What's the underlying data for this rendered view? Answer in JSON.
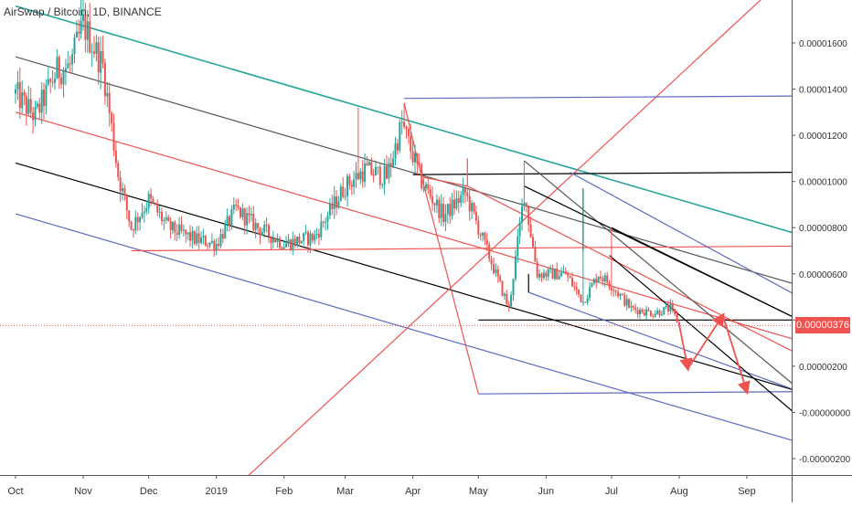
{
  "colors": {
    "up": "#26a69a",
    "down": "#ef5350",
    "channel_teal": "#26a69a",
    "channel_black": "#000000",
    "channel_gray": "#555555",
    "channel_red": "#ef5350",
    "channel_blue": "#5c6bc0",
    "last_price": "#ef5350"
  },
  "chart_data": {
    "type": "candlestick",
    "title": "AirSwap / Bitcoin, 1D, BINANCE",
    "symbol": "AirSwap / Bitcoin",
    "interval": "1D",
    "exchange": "BINANCE",
    "x_ticks": [
      "Oct",
      "Nov",
      "Dec",
      "2019",
      "Feb",
      "Mar",
      "Apr",
      "May",
      "Jun",
      "Jul",
      "Aug",
      "Sep"
    ],
    "y_ticks": [
      "0.00001600",
      "0.00001400",
      "0.00001200",
      "0.00001000",
      "0.00000800",
      "0.00000600",
      "0.00000400",
      "0.00000200",
      "-0.00000000",
      "-0.00000200"
    ],
    "ylim": [
      -2.5e-06,
      1.79e-05
    ],
    "last_price": 3.76e-06,
    "last_price_label": "0.00000376",
    "grid": false,
    "series": [
      {
        "type": "candlestick",
        "anchors": [
          [
            "2018-10-01",
            1.38e-05
          ],
          [
            "2018-10-10",
            1.28e-05
          ],
          [
            "2018-10-20",
            1.48e-05
          ],
          [
            "2018-10-26",
            1.5e-05
          ],
          [
            "2018-11-01",
            1.68e-05
          ],
          [
            "2018-11-10",
            1.5e-05
          ],
          [
            "2018-11-17",
            1.03e-05
          ],
          [
            "2018-11-23",
            8e-06
          ],
          [
            "2018-12-01",
            9.2e-06
          ],
          [
            "2018-12-10",
            8e-06
          ],
          [
            "2018-12-22",
            7.5e-06
          ],
          [
            "2019-01-01",
            7.3e-06
          ],
          [
            "2019-01-10",
            8.8e-06
          ],
          [
            "2019-01-20",
            8e-06
          ],
          [
            "2019-02-01",
            7.3e-06
          ],
          [
            "2019-02-15",
            7.6e-06
          ],
          [
            "2019-03-01",
            9.8e-06
          ],
          [
            "2019-03-10",
            1.05e-05
          ],
          [
            "2019-03-20",
            1.02e-05
          ],
          [
            "2019-03-27",
            1.25e-05
          ],
          [
            "2019-04-05",
            1e-05
          ],
          [
            "2019-04-15",
            8.5e-06
          ],
          [
            "2019-04-25",
            9.5e-06
          ],
          [
            "2019-05-05",
            7e-06
          ],
          [
            "2019-05-15",
            4.5e-06
          ],
          [
            "2019-05-22",
            9.5e-06
          ],
          [
            "2019-05-28",
            6e-06
          ],
          [
            "2019-06-10",
            6e-06
          ],
          [
            "2019-06-18",
            4.8e-06
          ],
          [
            "2019-06-25",
            6e-06
          ],
          [
            "2019-07-01",
            5.5e-06
          ],
          [
            "2019-07-10",
            4.5e-06
          ],
          [
            "2019-07-20",
            4.3e-06
          ],
          [
            "2019-07-28",
            4.5e-06
          ],
          [
            "2019-08-01",
            3.8e-06
          ]
        ]
      }
    ],
    "spikes": [
      {
        "date": "2018-10-31",
        "high": 1.79e-05
      },
      {
        "date": "2019-03-07",
        "high": 1.32e-05
      },
      {
        "date": "2019-03-28",
        "high": 1.34e-05
      },
      {
        "date": "2019-05-22",
        "high": 1.09e-05
      },
      {
        "date": "2019-06-18",
        "high": 9.7e-06
      },
      {
        "date": "2019-07-01",
        "high": 8e-06
      }
    ],
    "drawings": [
      {
        "kind": "line",
        "role": "channel_teal",
        "from": [
          "2018-10-01",
          1.76e-05
        ],
        "to": [
          "2019-09-25",
          7.7e-06
        ]
      },
      {
        "kind": "line",
        "role": "channel_gray",
        "from": [
          "2018-10-01",
          1.54e-05
        ],
        "to": [
          "2019-09-25",
          5.5e-06
        ]
      },
      {
        "kind": "line",
        "role": "channel_red",
        "from": [
          "2018-10-01",
          1.3e-05
        ],
        "to": [
          "2019-09-25",
          3.1e-06
        ]
      },
      {
        "kind": "line",
        "role": "channel_black",
        "from": [
          "2018-10-01",
          1.08e-05
        ],
        "to": [
          "2019-09-25",
          9e-07
        ]
      },
      {
        "kind": "line",
        "role": "channel_blue",
        "from": [
          "2018-10-01",
          8.6e-06
        ],
        "to": [
          "2019-09-25",
          -1.3e-06
        ]
      },
      {
        "kind": "line",
        "role": "channel_black",
        "from": [
          "2018-10-01",
          1.82e-05
        ],
        "to": [
          "2018-10-07",
          1.79e-05
        ]
      },
      {
        "kind": "line",
        "role": "channel_red",
        "from": [
          "2018-11-23",
          7e-06
        ],
        "to": [
          "2019-09-25",
          7.2e-06
        ]
      },
      {
        "kind": "line",
        "role": "channel_red",
        "from": [
          "2019-01-15",
          -2.8e-06
        ],
        "to": [
          "2019-09-10",
          1.81e-05
        ]
      },
      {
        "kind": "line",
        "role": "channel_blue",
        "from": [
          "2019-03-28",
          1.36e-05
        ],
        "to": [
          "2019-09-25",
          1.37e-05
        ]
      },
      {
        "kind": "line",
        "role": "channel_black",
        "from": [
          "2019-04-01",
          1.03e-05
        ],
        "to": [
          "2019-09-25",
          1.04e-05
        ]
      },
      {
        "kind": "line",
        "role": "channel_black",
        "from": [
          "2019-05-01",
          4e-06
        ],
        "to": [
          "2019-09-25",
          4e-06
        ]
      },
      {
        "kind": "line",
        "role": "channel_blue",
        "from": [
          "2019-05-01",
          8e-07
        ],
        "to": [
          "2019-09-25",
          9e-07
        ]
      },
      {
        "kind": "line",
        "role": "channel_red",
        "from": [
          "2019-03-28",
          1.34e-05
        ],
        "to": [
          "2019-04-05",
          1.02e-05
        ]
      },
      {
        "kind": "line",
        "role": "channel_red",
        "from": [
          "2019-04-05",
          1.02e-05
        ],
        "to": [
          "2019-05-01",
          8e-07
        ]
      },
      {
        "kind": "line",
        "role": "channel_red",
        "from": [
          "2019-04-05",
          1.02e-05
        ],
        "to": [
          "2019-04-26",
          9.8e-06
        ]
      },
      {
        "kind": "line",
        "role": "channel_red",
        "from": [
          "2019-04-26",
          1.1e-05
        ],
        "to": [
          "2019-04-26",
          9.8e-06
        ]
      },
      {
        "kind": "line",
        "role": "channel_red",
        "from": [
          "2019-04-26",
          9.8e-06
        ],
        "to": [
          "2019-09-25",
          2.5e-06
        ]
      },
      {
        "kind": "line",
        "role": "channel_gray",
        "from": [
          "2019-05-22",
          1.09e-05
        ],
        "to": [
          "2019-09-25",
          1e-06
        ]
      },
      {
        "kind": "line",
        "role": "channel_black",
        "from": [
          "2019-05-22",
          9.8e-06
        ],
        "to": [
          "2019-09-25",
          4e-06
        ]
      },
      {
        "kind": "line",
        "role": "channel_blue",
        "from": [
          "2019-06-12",
          1.04e-05
        ],
        "to": [
          "2019-09-25",
          5e-06
        ]
      },
      {
        "kind": "line",
        "role": "channel_blue",
        "from": [
          "2019-05-24",
          5.2e-06
        ],
        "to": [
          "2019-09-25",
          9e-07
        ]
      },
      {
        "kind": "line",
        "role": "channel_black",
        "from": [
          "2019-05-24",
          6e-06
        ],
        "to": [
          "2019-05-24",
          5.2e-06
        ]
      },
      {
        "kind": "line",
        "role": "channel_black",
        "from": [
          "2019-06-30",
          6.8e-06
        ],
        "to": [
          "2019-09-25",
          -2e-07
        ]
      },
      {
        "kind": "line",
        "role": "channel_black",
        "from": [
          "2019-06-18",
          9.7e-06
        ],
        "to": [
          "2019-06-18",
          7e-06
        ]
      },
      {
        "kind": "line",
        "role": "channel_black",
        "from": [
          "2019-07-01",
          8e-06
        ],
        "to": [
          "2019-09-25",
          4e-06
        ]
      },
      {
        "kind": "arrow",
        "role": "last_price",
        "from": [
          "2019-08-01",
          3.8e-06
        ],
        "to": [
          "2019-08-05",
          1.9e-06
        ]
      },
      {
        "kind": "arrow",
        "role": "last_price",
        "from": [
          "2019-08-05",
          1.9e-06
        ],
        "to": [
          "2019-08-21",
          4.2e-06
        ]
      },
      {
        "kind": "arrow",
        "role": "last_price",
        "from": [
          "2019-08-21",
          4.2e-06
        ],
        "to": [
          "2019-09-01",
          9e-07
        ]
      }
    ]
  }
}
